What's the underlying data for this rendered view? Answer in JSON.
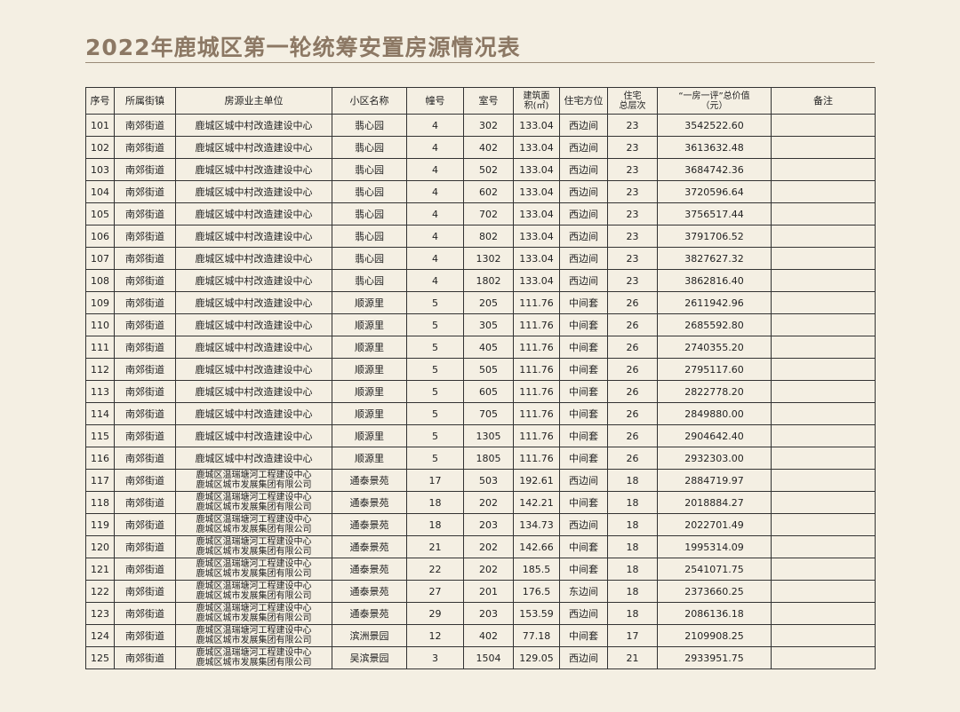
{
  "header": {
    "title": "2022年鹿城区第一轮统筹安置房源情况表"
  },
  "table": {
    "columns": [
      "序号",
      "所属街镇",
      "房源业主单位",
      "小区名称",
      "幢号",
      "室号",
      [
        "建筑面",
        "积(㎡)"
      ],
      "住宅方位",
      [
        "住宅",
        "总层次"
      ],
      [
        "“一房一评”总价值",
        "（元）"
      ],
      "备注"
    ],
    "rows": [
      [
        "101",
        "南郊街道",
        "鹿城区城中村改造建设中心",
        "翡心园",
        "4",
        "302",
        "133.04",
        "西边间",
        "23",
        "3542522.60"
      ],
      [
        "102",
        "南郊街道",
        "鹿城区城中村改造建设中心",
        "翡心园",
        "4",
        "402",
        "133.04",
        "西边间",
        "23",
        "3613632.48"
      ],
      [
        "103",
        "南郊街道",
        "鹿城区城中村改造建设中心",
        "翡心园",
        "4",
        "502",
        "133.04",
        "西边间",
        "23",
        "3684742.36"
      ],
      [
        "104",
        "南郊街道",
        "鹿城区城中村改造建设中心",
        "翡心园",
        "4",
        "602",
        "133.04",
        "西边间",
        "23",
        "3720596.64"
      ],
      [
        "105",
        "南郊街道",
        "鹿城区城中村改造建设中心",
        "翡心园",
        "4",
        "702",
        "133.04",
        "西边间",
        "23",
        "3756517.44"
      ],
      [
        "106",
        "南郊街道",
        "鹿城区城中村改造建设中心",
        "翡心园",
        "4",
        "802",
        "133.04",
        "西边间",
        "23",
        "3791706.52"
      ],
      [
        "107",
        "南郊街道",
        "鹿城区城中村改造建设中心",
        "翡心园",
        "4",
        "1302",
        "133.04",
        "西边间",
        "23",
        "3827627.32"
      ],
      [
        "108",
        "南郊街道",
        "鹿城区城中村改造建设中心",
        "翡心园",
        "4",
        "1802",
        "133.04",
        "西边间",
        "23",
        "3862816.40"
      ],
      [
        "109",
        "南郊街道",
        "鹿城区城中村改造建设中心",
        "顺源里",
        "5",
        "205",
        "111.76",
        "中间套",
        "26",
        "2611942.96"
      ],
      [
        "110",
        "南郊街道",
        "鹿城区城中村改造建设中心",
        "顺源里",
        "5",
        "305",
        "111.76",
        "中间套",
        "26",
        "2685592.80"
      ],
      [
        "111",
        "南郊街道",
        "鹿城区城中村改造建设中心",
        "顺源里",
        "5",
        "405",
        "111.76",
        "中间套",
        "26",
        "2740355.20"
      ],
      [
        "112",
        "南郊街道",
        "鹿城区城中村改造建设中心",
        "顺源里",
        "5",
        "505",
        "111.76",
        "中间套",
        "26",
        "2795117.60"
      ],
      [
        "113",
        "南郊街道",
        "鹿城区城中村改造建设中心",
        "顺源里",
        "5",
        "605",
        "111.76",
        "中间套",
        "26",
        "2822778.20"
      ],
      [
        "114",
        "南郊街道",
        "鹿城区城中村改造建设中心",
        "顺源里",
        "5",
        "705",
        "111.76",
        "中间套",
        "26",
        "2849880.00"
      ],
      [
        "115",
        "南郊街道",
        "鹿城区城中村改造建设中心",
        "顺源里",
        "5",
        "1305",
        "111.76",
        "中间套",
        "26",
        "2904642.40"
      ],
      [
        "116",
        "南郊街道",
        "鹿城区城中村改造建设中心",
        "顺源里",
        "5",
        "1805",
        "111.76",
        "中间套",
        "26",
        "2932303.00"
      ],
      [
        "117",
        "南郊街道",
        [
          "鹿城区温瑞塘河工程建设中心",
          "鹿城区城市发展集团有限公司"
        ],
        "通泰景苑",
        "17",
        "503",
        "192.61",
        "西边间",
        "18",
        "2884719.97"
      ],
      [
        "118",
        "南郊街道",
        [
          "鹿城区温瑞塘河工程建设中心",
          "鹿城区城市发展集团有限公司"
        ],
        "通泰景苑",
        "18",
        "202",
        "142.21",
        "中间套",
        "18",
        "2018884.27"
      ],
      [
        "119",
        "南郊街道",
        [
          "鹿城区温瑞塘河工程建设中心",
          "鹿城区城市发展集团有限公司"
        ],
        "通泰景苑",
        "18",
        "203",
        "134.73",
        "西边间",
        "18",
        "2022701.49"
      ],
      [
        "120",
        "南郊街道",
        [
          "鹿城区温瑞塘河工程建设中心",
          "鹿城区城市发展集团有限公司"
        ],
        "通泰景苑",
        "21",
        "202",
        "142.66",
        "中间套",
        "18",
        "1995314.09"
      ],
      [
        "121",
        "南郊街道",
        [
          "鹿城区温瑞塘河工程建设中心",
          "鹿城区城市发展集团有限公司"
        ],
        "通泰景苑",
        "22",
        "202",
        "185.5",
        "中间套",
        "18",
        "2541071.75"
      ],
      [
        "122",
        "南郊街道",
        [
          "鹿城区温瑞塘河工程建设中心",
          "鹿城区城市发展集团有限公司"
        ],
        "通泰景苑",
        "27",
        "201",
        "176.5",
        "东边间",
        "18",
        "2373660.25"
      ],
      [
        "123",
        "南郊街道",
        [
          "鹿城区温瑞塘河工程建设中心",
          "鹿城区城市发展集团有限公司"
        ],
        "通泰景苑",
        "29",
        "203",
        "153.59",
        "西边间",
        "18",
        "2086136.18"
      ],
      [
        "124",
        "南郊街道",
        [
          "鹿城区温瑞塘河工程建设中心",
          "鹿城区城市发展集团有限公司"
        ],
        "滨洲景园",
        "12",
        "402",
        "77.18",
        "中间套",
        "17",
        "2109908.25"
      ],
      [
        "125",
        "南郊街道",
        [
          "鹿城区温瑞塘河工程建设中心",
          "鹿城区城市发展集团有限公司"
        ],
        "吴滨景园",
        "3",
        "1504",
        "129.05",
        "西边间",
        "21",
        "2933951.75"
      ]
    ]
  }
}
